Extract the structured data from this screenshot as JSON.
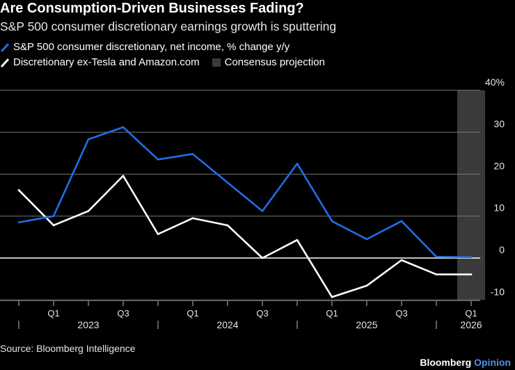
{
  "chart_data": {
    "type": "line",
    "title": "Are Consumption-Driven Businesses Fading?",
    "subtitle": "S&P 500 consumer discretionary earnings growth is sputtering",
    "x": [
      "2022 Q4",
      "2023 Q1",
      "2023 Q2",
      "2023 Q3",
      "2023 Q4",
      "2024 Q1",
      "2024 Q2",
      "2024 Q3",
      "2024 Q4",
      "2025 Q1",
      "2025 Q2",
      "2025 Q3",
      "2025 Q4",
      "2026 Q1"
    ],
    "series": [
      {
        "name": "S&P 500 consumer discretionary, net income, % change y/y",
        "color": "#1f6fe5",
        "values": [
          8.5,
          10,
          28.3,
          31.2,
          23.5,
          24.8,
          18.0,
          11.2,
          22.5,
          8.8,
          4.5,
          8.8,
          0.3,
          0.2
        ]
      },
      {
        "name": "Discretionary ex-Tesla and Amazon.com",
        "color": "#ffffff",
        "values": [
          16.2,
          7.8,
          11.2,
          19.6,
          5.7,
          9.5,
          7.8,
          0.0,
          4.3,
          -9.3,
          -6.6,
          -0.5,
          -3.9,
          -3.9
        ]
      }
    ],
    "shaded_band": {
      "label": "Consensus projection",
      "from": "2026 Q1",
      "color": "#3a3a3a"
    },
    "ylim": [
      -10,
      40
    ],
    "y_ticks": [
      {
        "value": 40,
        "label": "40%"
      },
      {
        "value": 30,
        "label": "30"
      },
      {
        "value": 20,
        "label": "20"
      },
      {
        "value": 10,
        "label": "10"
      },
      {
        "value": 0,
        "label": "0"
      },
      {
        "value": -10,
        "label": "-10"
      }
    ],
    "x_tick_labels": [
      {
        "index": 1,
        "label": "Q1"
      },
      {
        "index": 3,
        "label": "Q3"
      },
      {
        "index": 5,
        "label": "Q1"
      },
      {
        "index": 7,
        "label": "Q3"
      },
      {
        "index": 9,
        "label": "Q1"
      },
      {
        "index": 11,
        "label": "Q3"
      },
      {
        "index": 13,
        "label": "Q1"
      }
    ],
    "year_labels": [
      {
        "label": "2023",
        "index": 2
      },
      {
        "label": "2024",
        "index": 6
      },
      {
        "label": "2025",
        "index": 10
      },
      {
        "label": "2026",
        "index": 13
      }
    ],
    "year_dividers": [
      0,
      4,
      8,
      12
    ],
    "xlabel": "",
    "ylabel": "",
    "grid": true,
    "legend_position": "top-left"
  },
  "legend": {
    "item1": "S&P 500 consumer discretionary, net income, % change y/y",
    "item2": "Discretionary ex-Tesla and Amazon.com",
    "item3": "Consensus projection"
  },
  "source": "Source: Bloomberg Intelligence",
  "brand": {
    "name": "Bloomberg",
    "suffix": "Opinion"
  },
  "colors": {
    "blue": "#1f6fe5",
    "white": "#ffffff",
    "band": "#3a3a3a",
    "grid": "#777777"
  }
}
